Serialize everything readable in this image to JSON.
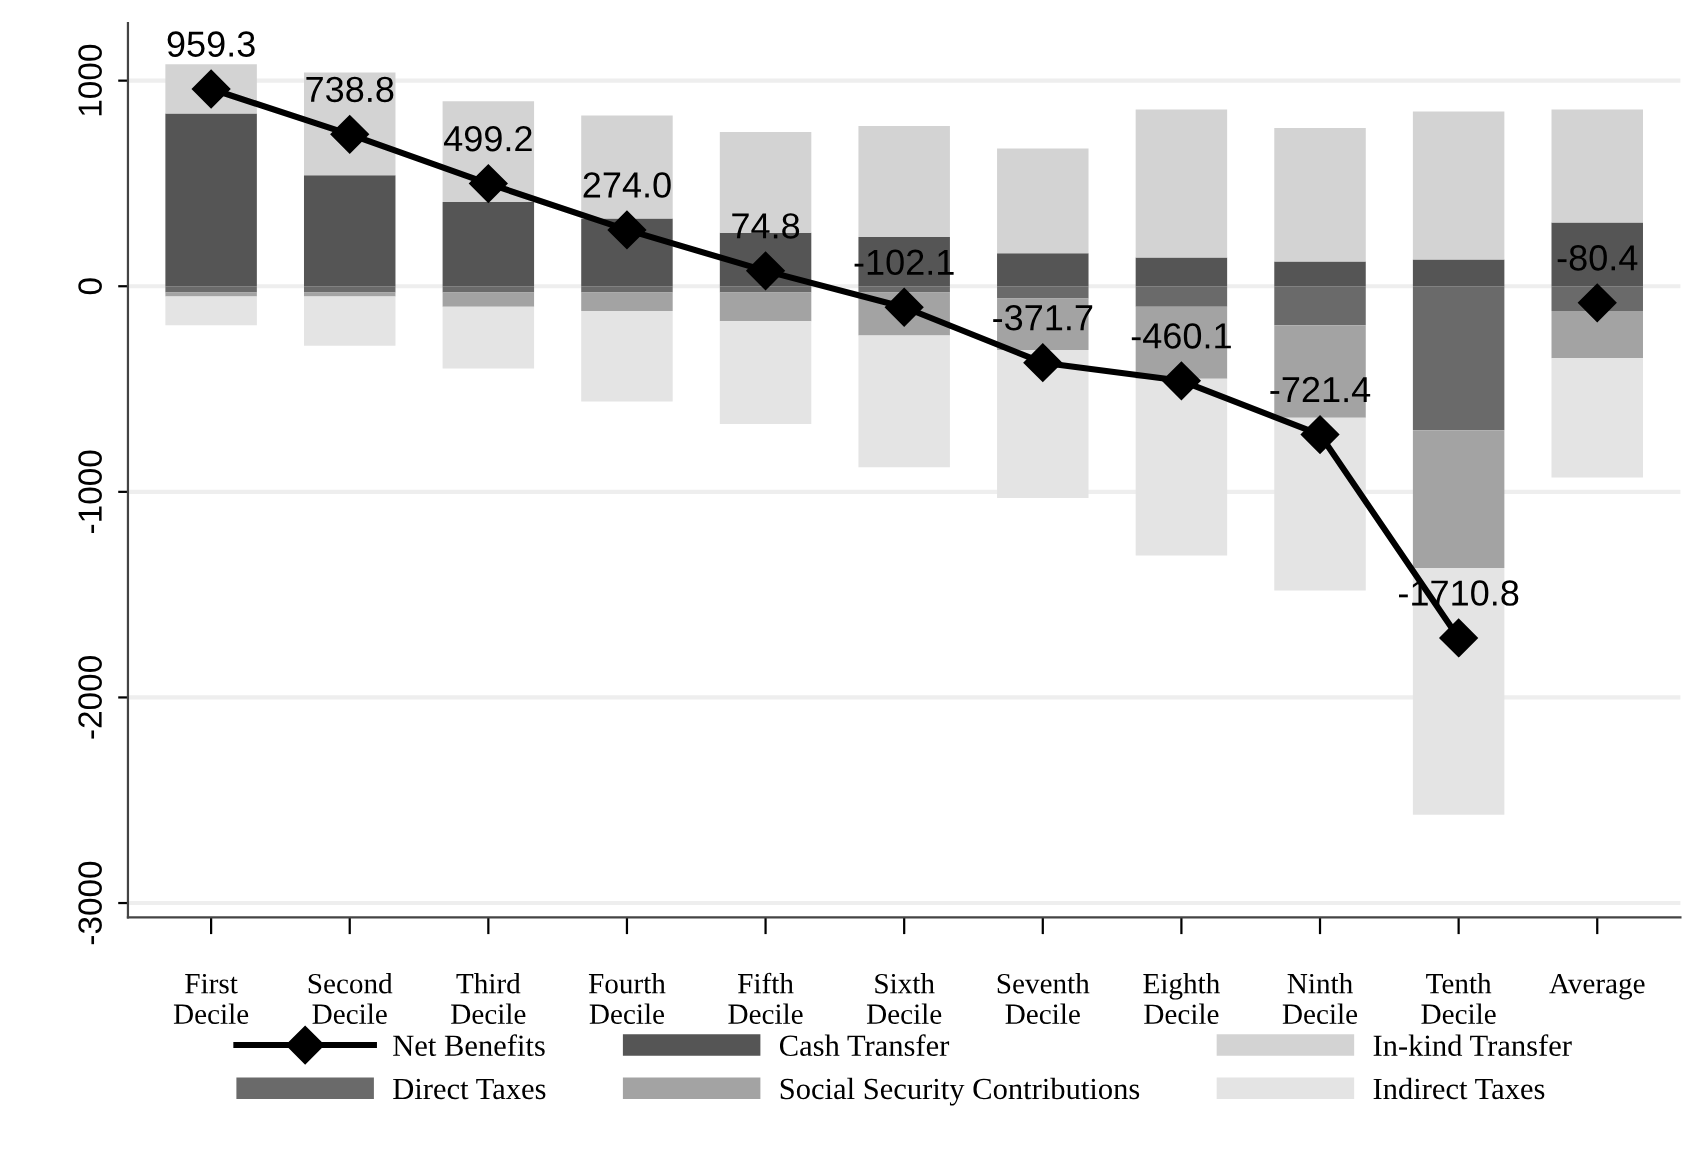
{
  "chart_data": {
    "type": "bar",
    "stacked": true,
    "categories": [
      "First\nDecile",
      "Second\nDecile",
      "Third\nDecile",
      "Fourth\nDecile",
      "Fifth\nDecile",
      "Sixth\nDecile",
      "Seventh\nDecile",
      "Eighth\nDecile",
      "Ninth\nDecile",
      "Tenth\nDecile",
      "Average"
    ],
    "series": [
      {
        "name": "Cash Transfer",
        "color": "#555555",
        "values": [
          840,
          540,
          410,
          330,
          260,
          240,
          160,
          140,
          120,
          130,
          310
        ]
      },
      {
        "name": "In-kind Transfer",
        "color": "#d3d3d3",
        "values": [
          240,
          500,
          490,
          500,
          490,
          540,
          510,
          720,
          650,
          720,
          550
        ]
      },
      {
        "name": "Direct Taxes",
        "color": "#6a6a6a",
        "values": [
          -30,
          -30,
          -30,
          -30,
          -30,
          -30,
          -60,
          -100,
          -190,
          -700,
          -120
        ]
      },
      {
        "name": "Social Security Contributions",
        "color": "#a3a3a3",
        "values": [
          -20,
          -20,
          -70,
          -90,
          -140,
          -210,
          -250,
          -350,
          -450,
          -670,
          -230
        ]
      },
      {
        "name": "Indirect Taxes",
        "color": "#e4e4e4",
        "values": [
          -140,
          -240,
          -300,
          -440,
          -500,
          -640,
          -720,
          -860,
          -840,
          -1200,
          -580
        ]
      },
      {
        "name": "Net Benefits",
        "type": "line",
        "color": "#000000",
        "marker": "diamond",
        "values": [
          959.3,
          738.8,
          499.2,
          274.0,
          74.8,
          -102.1,
          -371.7,
          -460.1,
          -721.4,
          -1710.8,
          null
        ],
        "value_labels": [
          "959.3",
          "738.8",
          "499.2",
          "274.0",
          "74.8",
          "-102.1",
          "-371.7",
          "-460.1",
          "-721.4",
          "-1710.8",
          null
        ]
      },
      {
        "type": "scatter",
        "color": "#000000",
        "marker": "diamond",
        "values": [
          null,
          null,
          null,
          null,
          null,
          null,
          null,
          null,
          null,
          null,
          -80.4
        ],
        "value_labels": [
          null,
          null,
          null,
          null,
          null,
          null,
          null,
          null,
          null,
          null,
          "-80.4"
        ]
      }
    ],
    "ylim": [
      -3070,
      1280
    ],
    "yticks": [
      -3000,
      -2000,
      -1000,
      0,
      1000
    ],
    "grid": "y",
    "legend": "bottom"
  }
}
